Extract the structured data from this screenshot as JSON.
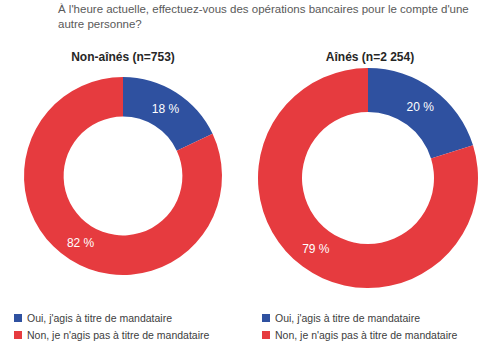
{
  "title": "À l'heure actuelle, effectuez-vous des opérations bancaires pour le compte d'une autre personne?",
  "chart_data": [
    {
      "type": "donut",
      "title": "Non-aînés (n=753)",
      "categories": [
        "Oui, j'agis à titre de mandataire",
        "Non, je n'agis pas à titre de mandataire"
      ],
      "values": [
        18,
        82
      ],
      "value_labels": [
        "18 %",
        "82 %"
      ],
      "colors": [
        "#2f51a0",
        "#e63b3f"
      ],
      "data_labels": true,
      "legend": "bottom"
    },
    {
      "type": "donut",
      "title": "Aînés (n=2 254)",
      "categories": [
        "Oui, j'agis à titre de mandataire",
        "Non, je n'agis pas à titre de mandataire"
      ],
      "values": [
        20,
        79
      ],
      "value_labels": [
        "20 %",
        "79 %"
      ],
      "colors": [
        "#2f51a0",
        "#e63b3f"
      ],
      "data_labels": true,
      "legend": "bottom"
    }
  ]
}
